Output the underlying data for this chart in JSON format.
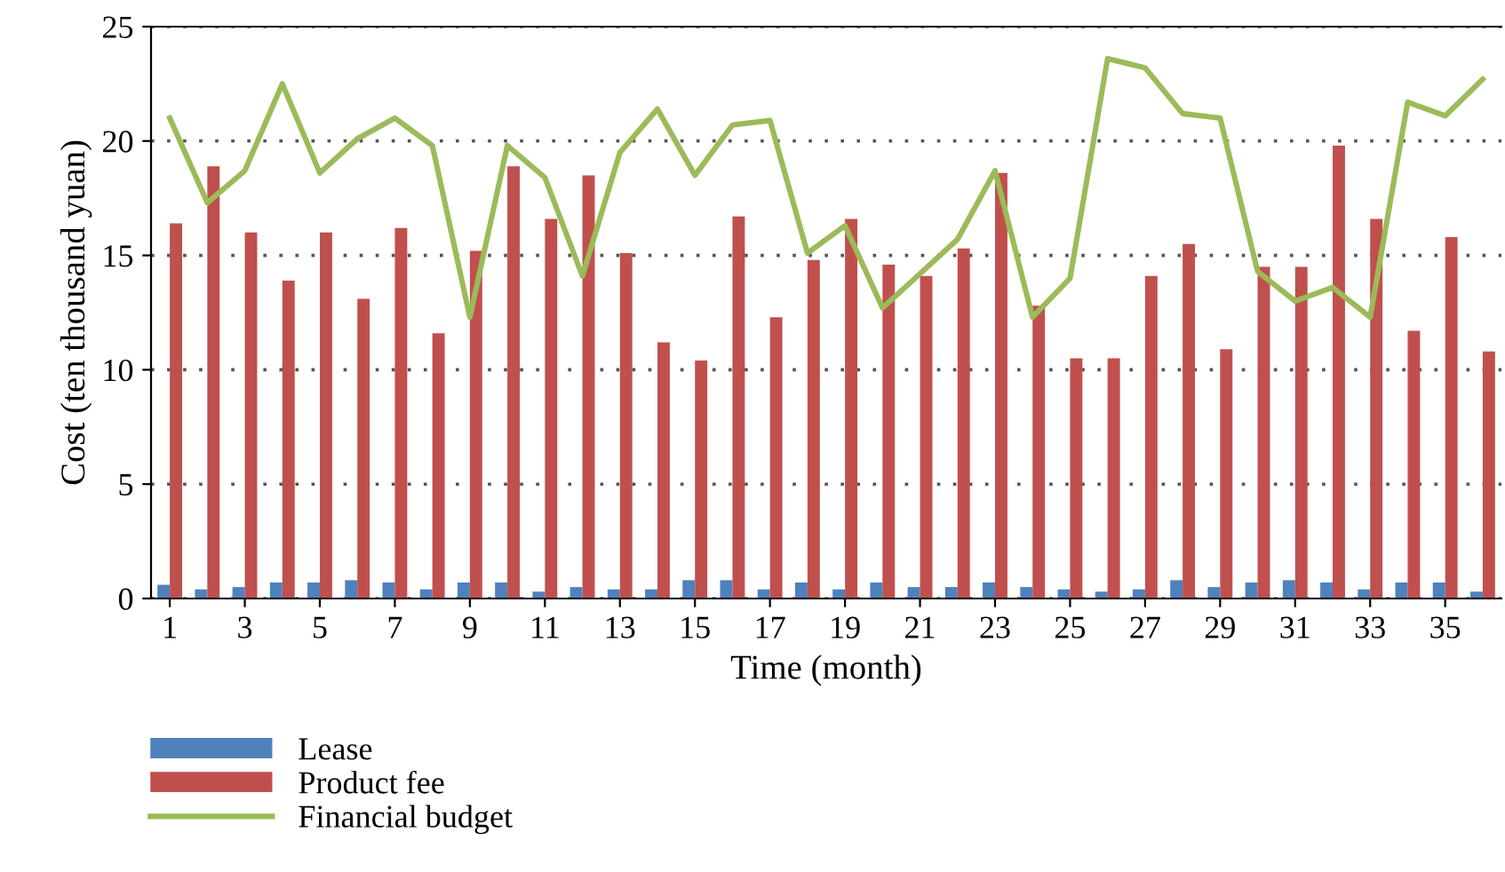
{
  "chart_data": {
    "type": "bar",
    "xlabel": "Time (month)",
    "ylabel": "Cost (ten thousand yuan)",
    "categories": [
      "1",
      null,
      "3",
      null,
      "5",
      null,
      "7",
      null,
      "9",
      null,
      "11",
      null,
      "13",
      null,
      "15",
      null,
      "17",
      null,
      "19",
      null,
      "21",
      null,
      "23",
      null,
      "25",
      null,
      "27",
      null,
      "29",
      null,
      "31",
      null,
      "33",
      null,
      "35",
      null
    ],
    "series": [
      {
        "name": "Lease",
        "color": "#4f81bd",
        "values": [
          0.6,
          0.4,
          0.5,
          0.7,
          0.7,
          0.8,
          0.7,
          0.4,
          0.7,
          0.7,
          0.3,
          0.5,
          0.4,
          0.4,
          0.8,
          0.8,
          0.4,
          0.7,
          0.4,
          0.7,
          0.5,
          0.5,
          0.7,
          0.5,
          0.4,
          0.3,
          0.4,
          0.8,
          0.5,
          0.7,
          0.8,
          0.7,
          0.4,
          0.7,
          0.7,
          0.3
        ]
      },
      {
        "name": "Product fee",
        "color": "#c0504d",
        "values": [
          16.4,
          18.9,
          16.0,
          13.9,
          16.0,
          13.1,
          16.2,
          11.6,
          15.2,
          18.9,
          16.6,
          18.5,
          15.1,
          11.2,
          10.4,
          16.7,
          12.3,
          14.8,
          16.6,
          14.6,
          14.1,
          15.3,
          18.6,
          12.8,
          10.5,
          10.5,
          14.1,
          15.5,
          10.9,
          14.5,
          14.5,
          19.8,
          16.6,
          11.7,
          15.8,
          10.8
        ]
      },
      {
        "name": "Financial budget",
        "type": "line",
        "color": "#9bbb59",
        "values": [
          21.0,
          17.3,
          18.7,
          22.5,
          18.6,
          20.1,
          21.0,
          19.8,
          12.3,
          19.8,
          18.4,
          14.1,
          19.5,
          21.4,
          18.5,
          20.7,
          20.9,
          15.1,
          16.3,
          12.7,
          14.2,
          15.7,
          18.7,
          12.3,
          14.0,
          23.6,
          23.2,
          21.2,
          21.0,
          14.3,
          13.0,
          13.6,
          12.3,
          21.7,
          21.1,
          22.7
        ]
      }
    ],
    "ylim": [
      0,
      25
    ],
    "yticks": [
      0,
      5,
      10,
      15,
      20,
      25
    ],
    "grid": "y",
    "legend": "bottom left",
    "marker": "none",
    "line_style": "solid"
  }
}
